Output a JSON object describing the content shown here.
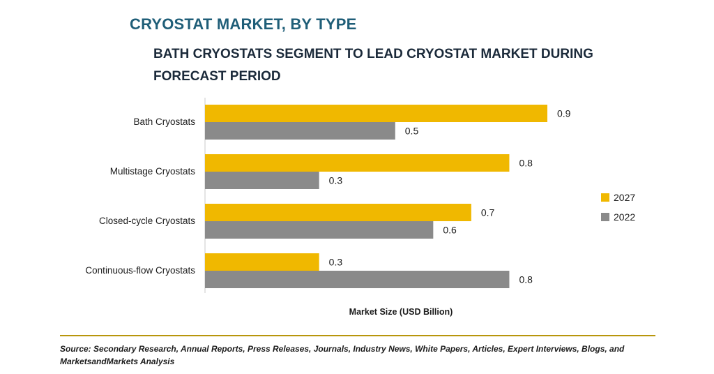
{
  "title": "CRYOSTAT MARKET, BY TYPE",
  "subtitle": "BATH CRYOSTATS SEGMENT TO LEAD CRYOSTAT MARKET DURING FORECAST PERIOD",
  "source": "Source: Secondary Research, Annual Reports, Press Releases, Journals, Industry News, White Papers, Articles, Expert Interviews, Blogs, and MarketsandMarkets Analysis",
  "colors": {
    "2027": "#f0b800",
    "2022": "#8a8a8a",
    "rule": "#b8960c"
  },
  "chart_data": {
    "type": "bar",
    "orientation": "horizontal",
    "title": "CRYOSTAT MARKET, BY TYPE",
    "subtitle": "BATH CRYOSTATS SEGMENT TO LEAD CRYOSTAT MARKET DURING FORECAST PERIOD",
    "xlabel": "Market Size (USD Billion)",
    "ylabel": "",
    "categories": [
      "Bath Cryostats",
      "Multistage Cryostats",
      "Closed-cycle Cryostats",
      "Continuous-flow Cryostats"
    ],
    "series": [
      {
        "name": "2027",
        "values": [
          0.9,
          0.8,
          0.7,
          0.3
        ]
      },
      {
        "name": "2022",
        "values": [
          0.5,
          0.3,
          0.6,
          0.8
        ]
      }
    ],
    "xlim": [
      0,
      1
    ],
    "data_labels": true,
    "grid": false,
    "legend_position": "right"
  }
}
